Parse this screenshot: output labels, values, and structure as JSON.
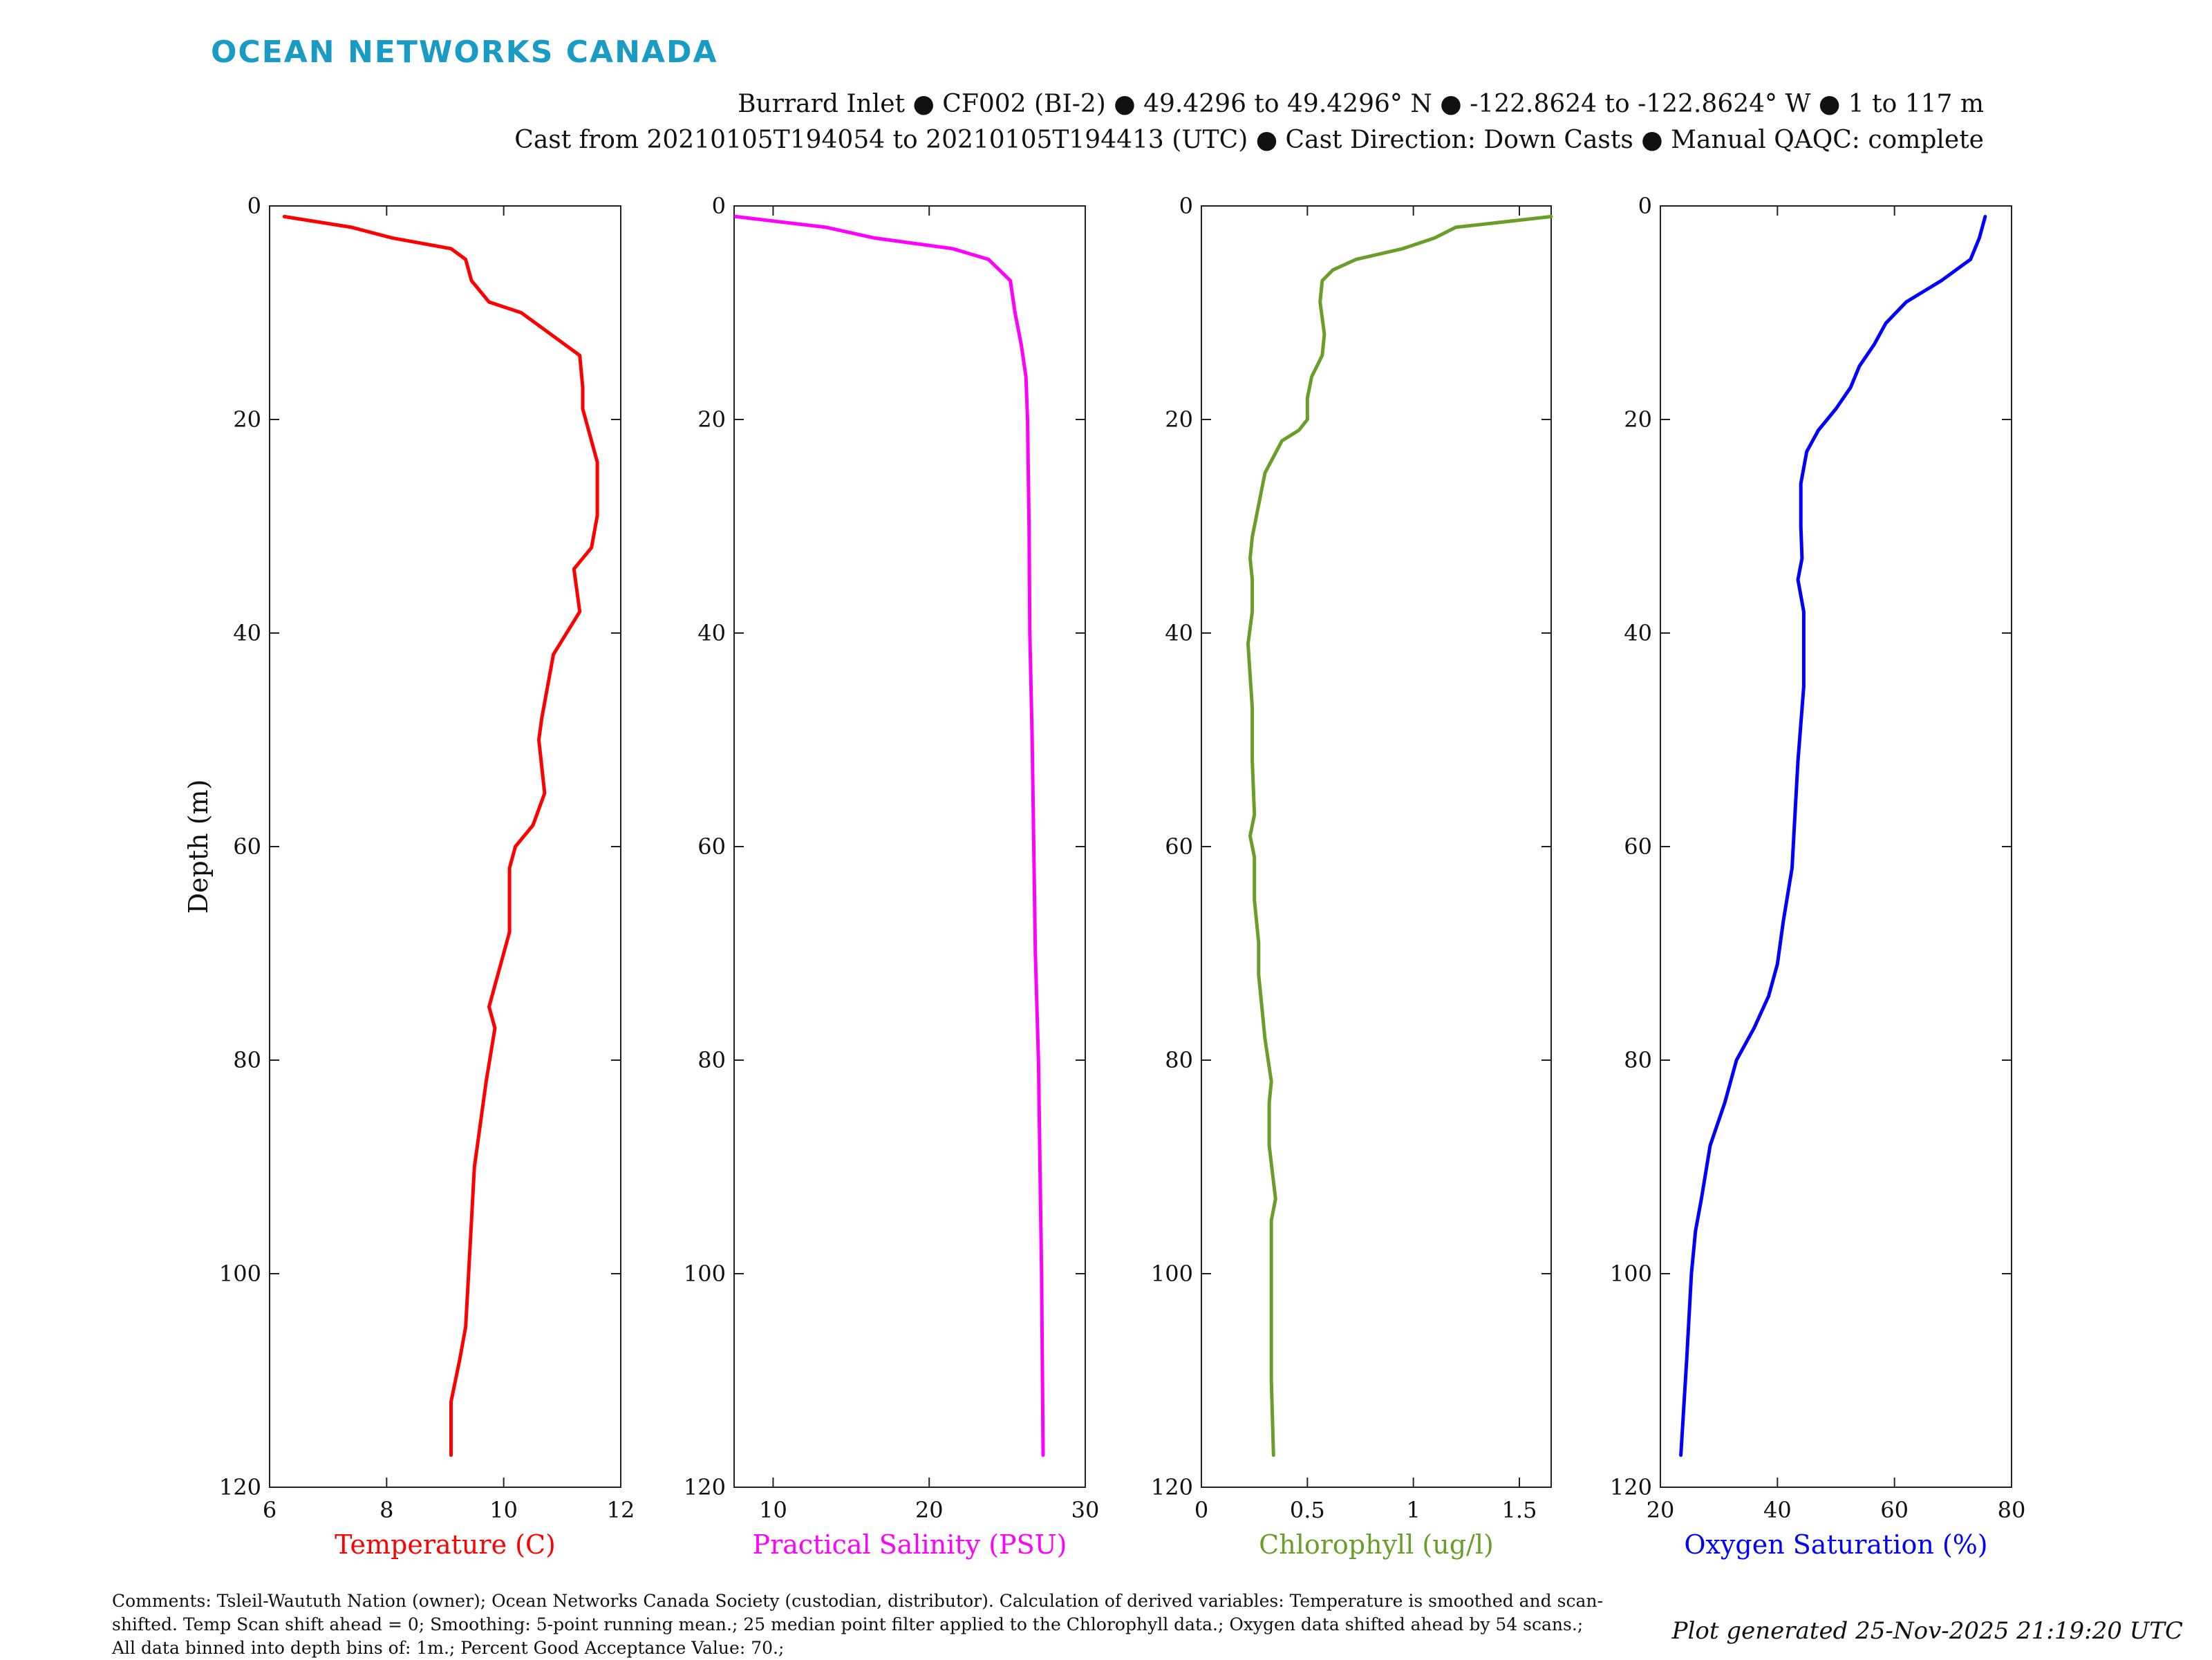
{
  "brand": "OCEAN NETWORKS CANADA",
  "header": {
    "line1": "Burrard Inlet ● CF002 (BI-2) ● 49.4296 to 49.4296° N ● -122.8624 to -122.8624° W ● 1 to 117 m",
    "line2": "Cast from 20210105T194054 to 20210105T194413 (UTC) ● Cast Direction: Down Casts ● Manual QAQC: complete"
  },
  "comments": "Comments: Tsleil-Waututh Nation (owner); Ocean Networks Canada Society (custodian, distributor). Calculation of derived variables: Temperature is smoothed and scan-shifted. Temp Scan shift ahead = 0; Smoothing: 5-point running mean.; 25 median point filter applied to the Chlorophyll data.; Oxygen data shifted ahead by 54 scans.; All data binned into depth bins of: 1m.; Percent Good Acceptance Value: 70.;",
  "generated": "Plot generated 25-Nov-2025 21:19:20 UTC",
  "chart_data": [
    {
      "type": "line",
      "xlabel": "Temperature (C)",
      "ylabel": "Depth (m)",
      "color": "#ff0000",
      "xlim": [
        6,
        12
      ],
      "ylim": [
        0,
        120
      ],
      "y_reversed": true,
      "xticks": [
        6,
        8,
        10,
        12
      ],
      "xtick_labels": [
        "6",
        "8",
        "10",
        "12"
      ],
      "yticks": [
        0,
        20,
        40,
        60,
        80,
        100,
        120
      ],
      "ytick_labels": [
        "0",
        "20",
        "40",
        "60",
        "80",
        "100",
        "120"
      ],
      "x": [
        6.25,
        7.4,
        8.1,
        9.1,
        9.35,
        9.45,
        9.75,
        10.3,
        10.8,
        11.3,
        11.35,
        11.35,
        11.6,
        11.6,
        11.5,
        11.2,
        11.3,
        10.85,
        10.65,
        10.6,
        10.7,
        10.5,
        10.2,
        10.1,
        10.1,
        9.9,
        9.75,
        9.85,
        9.7,
        9.55,
        9.5,
        9.45,
        9.4,
        9.35,
        9.25,
        9.1,
        9.1
      ],
      "y": [
        1,
        2,
        3,
        4,
        5,
        7,
        9,
        10,
        12,
        14,
        17,
        19,
        24,
        29,
        32,
        34,
        38,
        42,
        48,
        50,
        55,
        58,
        60,
        62,
        68,
        72,
        75,
        77,
        82,
        88,
        90,
        95,
        100,
        105,
        108,
        112,
        117
      ]
    },
    {
      "type": "line",
      "xlabel": "Practical Salinity (PSU)",
      "color": "#ff00ff",
      "xlim": [
        7.5,
        30
      ],
      "ylim": [
        0,
        120
      ],
      "y_reversed": true,
      "xticks": [
        10,
        20,
        30
      ],
      "xtick_labels": [
        "10",
        "20",
        "30"
      ],
      "yticks": [
        0,
        20,
        40,
        60,
        80,
        100,
        120
      ],
      "ytick_labels": [
        "0",
        "20",
        "40",
        "60",
        "80",
        "100",
        "120"
      ],
      "x": [
        7.6,
        10.5,
        13.4,
        16.5,
        21.5,
        23.8,
        25.2,
        25.5,
        25.9,
        26.2,
        26.3,
        26.4,
        26.45,
        26.6,
        26.8,
        27.0,
        27.1,
        27.2,
        27.3
      ],
      "y": [
        1,
        1.5,
        2,
        3,
        4,
        5,
        7,
        10,
        13,
        16,
        20,
        30,
        40,
        50,
        70,
        80,
        90,
        100,
        117
      ]
    },
    {
      "type": "line",
      "xlabel": "Chlorophyll (ug/l)",
      "color": "#6a9e2a",
      "xlim": [
        0,
        1.65
      ],
      "ylim": [
        0,
        120
      ],
      "y_reversed": true,
      "xticks": [
        0,
        0.5,
        1,
        1.5
      ],
      "xtick_labels": [
        "0",
        "0.5",
        "1",
        "1.5"
      ],
      "yticks": [
        0,
        20,
        40,
        60,
        80,
        100,
        120
      ],
      "ytick_labels": [
        "0",
        "20",
        "40",
        "60",
        "80",
        "100",
        "120"
      ],
      "x": [
        1.65,
        1.2,
        1.1,
        0.95,
        0.73,
        0.62,
        0.57,
        0.56,
        0.58,
        0.57,
        0.52,
        0.5,
        0.5,
        0.46,
        0.38,
        0.3,
        0.27,
        0.24,
        0.23,
        0.24,
        0.24,
        0.22,
        0.23,
        0.24,
        0.24,
        0.25,
        0.23,
        0.25,
        0.25,
        0.27,
        0.27,
        0.28,
        0.3,
        0.33,
        0.32,
        0.32,
        0.35,
        0.33,
        0.33,
        0.33,
        0.34
      ],
      "y": [
        1,
        2,
        3,
        4,
        5,
        6,
        7,
        9,
        12,
        14,
        16,
        18,
        20,
        21,
        22,
        25,
        28,
        31,
        33,
        35,
        38,
        41,
        44,
        47,
        52,
        57,
        59,
        61,
        65,
        69,
        72,
        74,
        78,
        82,
        84,
        88,
        93,
        95,
        100,
        110,
        117
      ]
    },
    {
      "type": "line",
      "xlabel": "Oxygen Saturation (%)",
      "color": "#0000ff",
      "xlim": [
        20,
        80
      ],
      "ylim": [
        0,
        120
      ],
      "y_reversed": true,
      "xticks": [
        20,
        40,
        60,
        80
      ],
      "xtick_labels": [
        "20",
        "40",
        "60",
        "80"
      ],
      "yticks": [
        0,
        20,
        40,
        60,
        80,
        100,
        120
      ],
      "ytick_labels": [
        "0",
        "20",
        "40",
        "60",
        "80",
        "100",
        "120"
      ],
      "x": [
        75.5,
        74.5,
        73,
        68,
        62,
        58.5,
        56.5,
        54,
        52.5,
        50,
        47,
        45,
        44,
        44,
        44.2,
        43.5,
        44.5,
        44.5,
        43.5,
        43.0,
        42.5,
        41,
        40,
        38.5,
        36,
        33,
        31,
        28.5,
        27,
        26,
        25.3,
        24.5,
        23.5
      ],
      "y": [
        1,
        3,
        5,
        7,
        9,
        11,
        13,
        15,
        17,
        19,
        21,
        23,
        26,
        30,
        33,
        35,
        38,
        45,
        52,
        57,
        62,
        67,
        71,
        74,
        77,
        80,
        84,
        88,
        93,
        96,
        100,
        108,
        117
      ]
    }
  ]
}
